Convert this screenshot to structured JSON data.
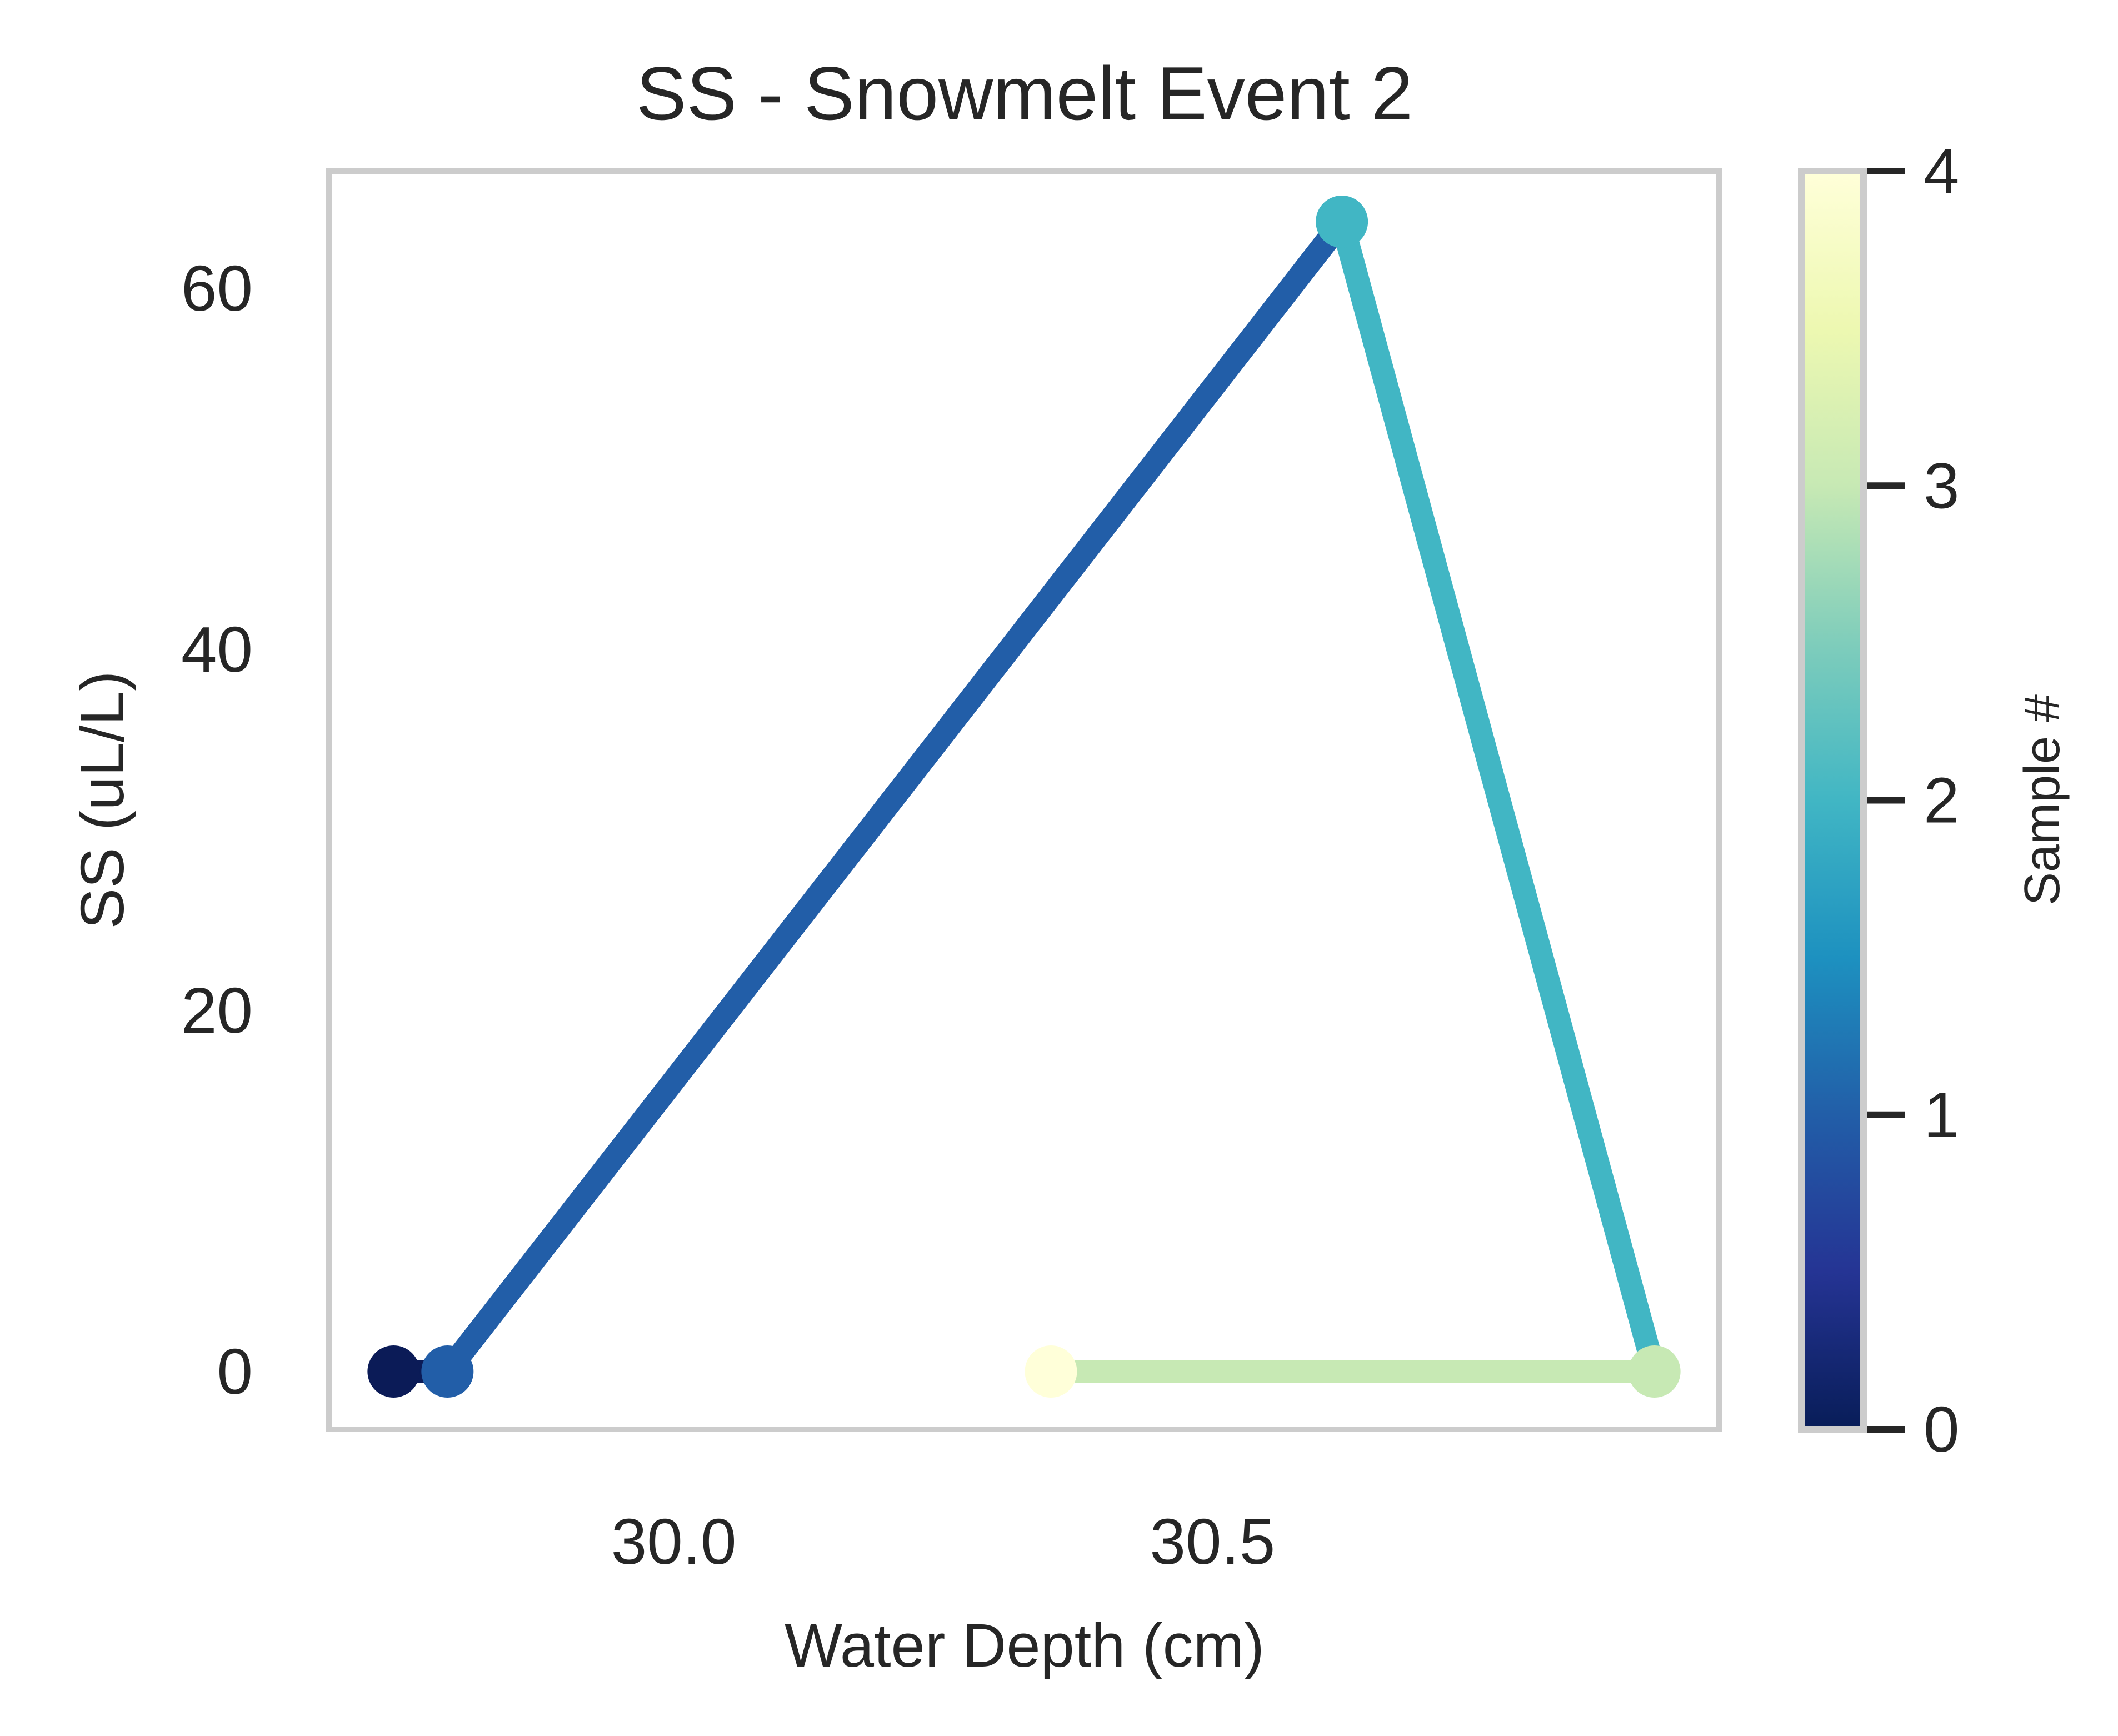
{
  "chart_data": {
    "type": "line",
    "title": "SS - Snowmelt Event 2",
    "xlabel": "Water Depth (cm)",
    "ylabel": "SS (uL/L)",
    "xlim": [
      29.68,
      30.97
    ],
    "ylim": [
      -3.2,
      66.5
    ],
    "xticks": [
      30.0,
      30.5
    ],
    "xtick_labels": [
      "30.0",
      "30.5"
    ],
    "yticks": [
      0,
      20,
      40,
      60
    ],
    "ytick_labels": [
      "0",
      "20",
      "40",
      "60"
    ],
    "grid": false,
    "colormap": "YlGnBu_r",
    "colorbar": {
      "label": "Sample #",
      "range": [
        0,
        4
      ],
      "ticks": [
        0,
        1,
        2,
        3,
        4
      ],
      "tick_labels": [
        "0",
        "1",
        "2",
        "3",
        "4"
      ]
    },
    "points": [
      {
        "sample": 0,
        "x": 29.74,
        "y": 0,
        "color": "#0b1b57"
      },
      {
        "sample": 1,
        "x": 29.79,
        "y": 0,
        "color": "#225ea8"
      },
      {
        "sample": 2,
        "x": 30.62,
        "y": 63.7,
        "color": "#41b6c4"
      },
      {
        "sample": 3,
        "x": 30.91,
        "y": 0,
        "color": "#c7e9b4"
      },
      {
        "sample": 4,
        "x": 30.35,
        "y": 0,
        "color": "#ffffd9"
      }
    ],
    "colorbar_gradient": [
      "#081d58",
      "#253494",
      "#225ea8",
      "#1d91c0",
      "#41b6c4",
      "#7fcdbb",
      "#c7e9b4",
      "#edf8b1",
      "#ffffd9"
    ]
  }
}
